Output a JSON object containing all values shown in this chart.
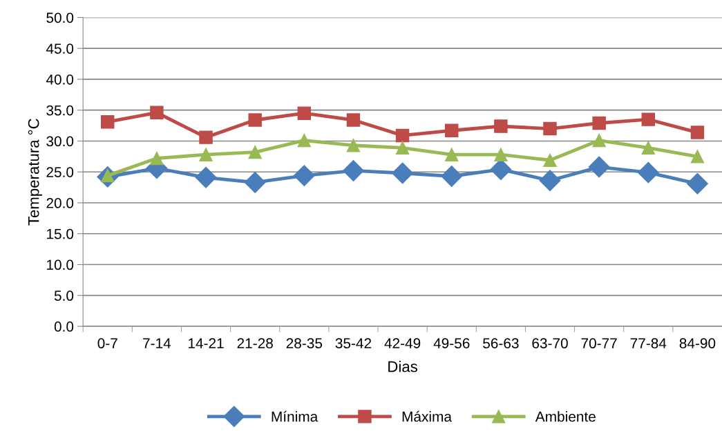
{
  "chart_data": {
    "type": "line",
    "xlabel": "Dias",
    "ylabel": "Temperatura °C",
    "categories": [
      "0-7",
      "7-14",
      "14-21",
      "21-28",
      "28-35",
      "35-42",
      "42-49",
      "49-56",
      "56-63",
      "63-70",
      "70-77",
      "77-84",
      "84-90"
    ],
    "series": [
      {
        "name": "Mínima",
        "color": "#4a7ebb",
        "marker": "diamond",
        "values": [
          24.2,
          25.6,
          24.1,
          23.3,
          24.4,
          25.2,
          24.8,
          24.3,
          25.4,
          23.6,
          25.8,
          24.9,
          23.1
        ]
      },
      {
        "name": "Máxima",
        "color": "#be4b48",
        "marker": "square",
        "values": [
          33.1,
          34.6,
          30.6,
          33.4,
          34.5,
          33.4,
          30.9,
          31.7,
          32.4,
          32.0,
          32.9,
          33.5,
          31.4
        ]
      },
      {
        "name": "Ambiente",
        "color": "#98b954",
        "marker": "triangle",
        "values": [
          24.4,
          27.2,
          27.8,
          28.2,
          30.1,
          29.3,
          28.9,
          27.8,
          27.8,
          26.9,
          30.1,
          28.9,
          27.5
        ]
      }
    ],
    "ylim": [
      0,
      50
    ],
    "yticks": [
      {
        "value": 0,
        "label": "0.0"
      },
      {
        "value": 5,
        "label": "5.0"
      },
      {
        "value": 10,
        "label": "10.0"
      },
      {
        "value": 15,
        "label": "15.0"
      },
      {
        "value": 20,
        "label": "20.0"
      },
      {
        "value": 25,
        "label": "25.0"
      },
      {
        "value": 30,
        "label": "30.0"
      },
      {
        "value": 35,
        "label": "35.0"
      },
      {
        "value": 40,
        "label": "40.0"
      },
      {
        "value": 45,
        "label": "45.0"
      },
      {
        "value": 50,
        "label": "50.0"
      }
    ],
    "grid": "y",
    "legend": "bottom",
    "line_style": "solid"
  }
}
